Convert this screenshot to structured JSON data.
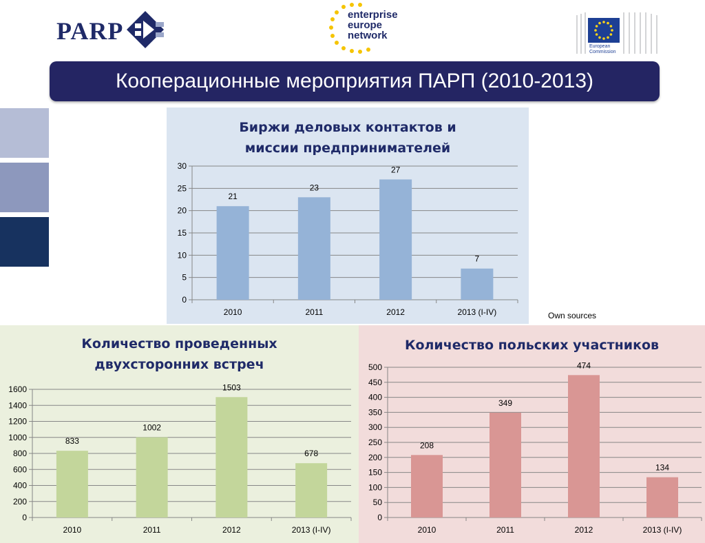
{
  "header": {
    "parp_logo_text": "PARP",
    "een_logo_lines": [
      "enterprise",
      "europe",
      "network"
    ],
    "ec_logo_lines": [
      "European",
      "Commission"
    ]
  },
  "title": "Кооперационные мероприятия ПАРП (2010-2013)",
  "source_note": "Own sources",
  "colors": {
    "banner": "#242563",
    "title_text": "#1f2a68",
    "bar_blue": "#95b3d7",
    "bar_green": "#c3d69b",
    "bar_red": "#d99694"
  },
  "chart_data": [
    {
      "type": "bar",
      "title": "Биржи деловых контактов и миссии предпринимателей",
      "title_lines": [
        "Биржи деловых контактов и",
        "миссии предпринимателей"
      ],
      "categories": [
        "2010",
        "2011",
        "2012",
        "2013 (I-IV)"
      ],
      "values": [
        21,
        23,
        27,
        7
      ],
      "yticks": [
        0,
        5,
        10,
        15,
        20,
        25,
        30
      ],
      "ylim": [
        0,
        30
      ],
      "grid": true,
      "legend": "none",
      "color": "#95b3d7"
    },
    {
      "type": "bar",
      "title": "Количество проведенных двухсторонних встреч",
      "title_lines": [
        "Количество проведенных",
        "двухсторонних встреч"
      ],
      "categories": [
        "2010",
        "2011",
        "2012",
        "2013 (I-IV)"
      ],
      "values": [
        833,
        1002,
        1503,
        678
      ],
      "yticks": [
        0,
        200,
        400,
        600,
        800,
        1000,
        1200,
        1400,
        1600
      ],
      "ylim": [
        0,
        1600
      ],
      "grid": true,
      "legend": "none",
      "color": "#c3d69b"
    },
    {
      "type": "bar",
      "title": "Количество  польских участников",
      "title_lines": [
        "Количество  польских участников"
      ],
      "categories": [
        "2010",
        "2011",
        "2012",
        "2013 (I-IV)"
      ],
      "values": [
        208,
        349,
        474,
        134
      ],
      "yticks": [
        0,
        50,
        100,
        150,
        200,
        250,
        300,
        350,
        400,
        450,
        500
      ],
      "ylim": [
        0,
        500
      ],
      "grid": true,
      "legend": "none",
      "color": "#d99694"
    }
  ]
}
